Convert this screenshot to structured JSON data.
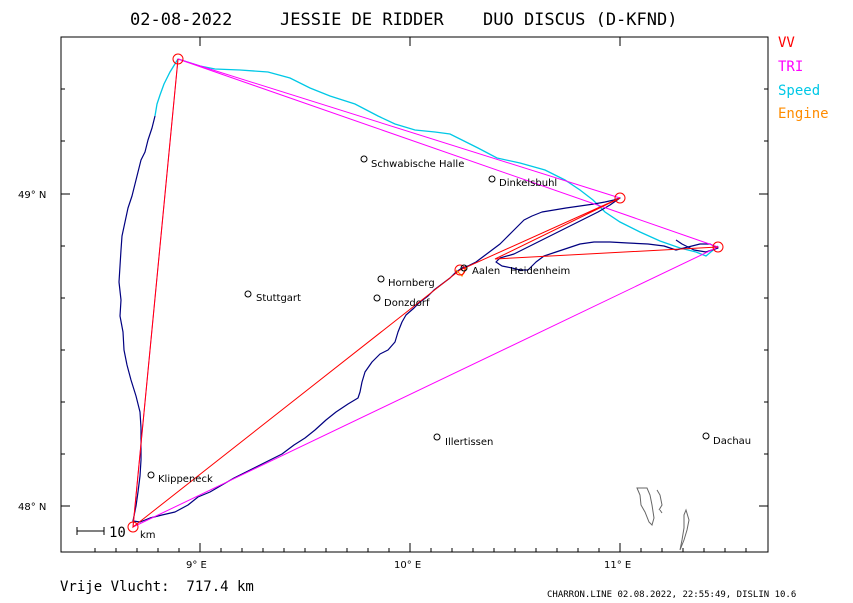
{
  "title": {
    "date": "02-08-2022",
    "pilot": "JESSIE DE RIDDER",
    "glider": "DUO DISCUS (D-KFND)"
  },
  "legend": [
    {
      "label": "VV",
      "color": "#ff0000"
    },
    {
      "label": "TRI",
      "color": "#ff00ff"
    },
    {
      "label": "Speed",
      "color": "#00c8e6"
    },
    {
      "label": "Engine",
      "color": "#ff8c00"
    }
  ],
  "axes": {
    "x_ticks": [
      "9° E",
      "10° E",
      "11° E"
    ],
    "y_ticks": [
      "49° N",
      "48° N"
    ]
  },
  "places": [
    {
      "name": "Schwäbische Halle",
      "label": "Schwabische Halle"
    },
    {
      "name": "Dinkelsbühl",
      "label": "Dinkelsbuhl"
    },
    {
      "name": "Hornberg",
      "label": "Hornberg"
    },
    {
      "name": "Stuttgart",
      "label": "Stuttgart"
    },
    {
      "name": "Donzdorf",
      "label": "Donzdorf"
    },
    {
      "name": "Aalen",
      "label": "Aalen"
    },
    {
      "name": "Heidenheim",
      "label": "Heidenheim"
    },
    {
      "name": "Illertissen",
      "label": "Illertissen"
    },
    {
      "name": "Dachau",
      "label": "Dachau"
    },
    {
      "name": "Klippeneck",
      "label": "Klippeneck"
    }
  ],
  "scale": {
    "value": "10",
    "unit": "km"
  },
  "footer": {
    "distance": "Vrije Vlucht:  717.4 km",
    "credit": "CHARRON.LINE 02.08.2022, 22:55:49, DISLIN 10.6"
  },
  "colors": {
    "track": "#000080",
    "vv": "#ff0000",
    "tri": "#ff00ff",
    "speed": "#00c8e6",
    "engine": "#ff8c00",
    "turnpoint": "#ff0000"
  }
}
